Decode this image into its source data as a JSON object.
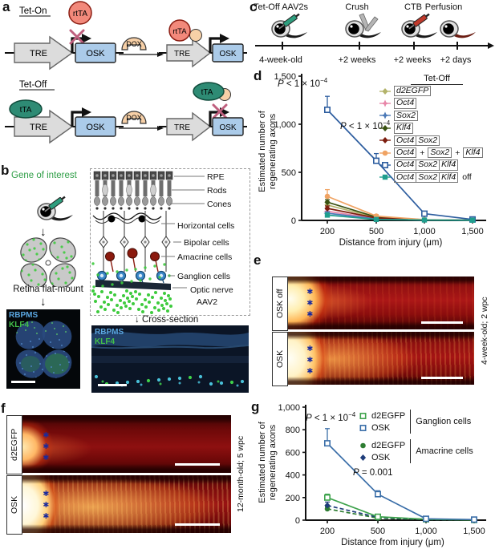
{
  "figure": {
    "crush_marks": "✱✱✱"
  },
  "palette": {
    "fluoro_red": "#a51414",
    "fluoro_bright": "#fff8e0",
    "aav_green": "#3ecb3e",
    "rbpms_blue": "#5aa6e0",
    "klf4_green": "#43c04a",
    "osk_blue": "#2d5d9f",
    "teal": "#1f9e8e",
    "rtta_red": "#f2897b",
    "tta_green": "#2e8b74",
    "dox_peach": "#f7d0a7"
  },
  "panels": {
    "a": {
      "label": "a",
      "tet_on": "Tet-On",
      "tet_off": "Tet-Off",
      "rtta": "rtTA",
      "tta": "tTA",
      "dox": "DOX",
      "tre": "TRE",
      "osk": "OSK"
    },
    "b": {
      "label": "b",
      "gene_of_interest": "Gene of interest",
      "flat_mount": "Retina flat-mount",
      "cross_section": "Cross-section",
      "rbpms": "RBPMS",
      "klf4": "KLF4",
      "layers": [
        "RPE",
        "Rods",
        "Cones",
        "Horizontal cells",
        "Bipolar cells",
        "Amacrine cells",
        "Ganglion cells",
        "Optic nerve",
        "AAV2"
      ]
    },
    "c": {
      "label": "c",
      "steps": [
        {
          "title": "Tet-Off AAV2s",
          "time": "4-week-old"
        },
        {
          "title": "Crush",
          "time": "+2 weeks"
        },
        {
          "title": "CTB",
          "time": "+2 weeks"
        },
        {
          "title": "Perfusion",
          "time": "+2 days"
        }
      ]
    },
    "d": {
      "label": "d"
    },
    "e": {
      "label": "e",
      "rows": [
        "OSK off",
        "OSK"
      ],
      "side": "4-week-old; 2 wpc"
    },
    "f": {
      "label": "f",
      "rows": [
        "d2EGFP",
        "OSK"
      ],
      "side": "12-month-old; 5 wpc"
    },
    "g": {
      "label": "g"
    }
  },
  "chart_data": [
    {
      "type": "line",
      "panel": "d",
      "legend_title": "Tet-Off",
      "grid": false,
      "legend_position": "top-right",
      "xlabel": "Distance from injury (μm)",
      "ylabel_lines": [
        "Estimated number of",
        "regenerating axons"
      ],
      "x": [
        200,
        500,
        1000,
        1500
      ],
      "xtick_labels": [
        "200",
        "500",
        "1,000",
        "1,500"
      ],
      "ylim": [
        0,
        1500
      ],
      "yticks": [
        0,
        500,
        1000,
        1500
      ],
      "ytick_labels": [
        "0",
        "500",
        "1,000",
        "1,500"
      ],
      "annotations": [
        {
          "p": "P",
          "rest": " < 1 × 10",
          "sup": "−4"
        },
        {
          "p": "P",
          "rest": " < 1 × 10",
          "sup": "−4"
        }
      ],
      "series": [
        {
          "name": "d2EGFP",
          "label_parts": [
            [
              "d2EGFP"
            ]
          ],
          "color": "#b3b36a",
          "marker": "diamond",
          "values": [
            160,
            30,
            5,
            2
          ],
          "errors": [
            30,
            8,
            2,
            0
          ]
        },
        {
          "name": "Oct4",
          "label_parts": [
            [
              "Oct4"
            ]
          ],
          "color": "#e887a9",
          "marker": "star",
          "values": [
            95,
            20,
            5,
            2
          ],
          "errors": [
            20,
            5,
            2,
            0
          ]
        },
        {
          "name": "Sox2",
          "label_parts": [
            [
              "Sox2"
            ]
          ],
          "color": "#4b79b7",
          "marker": "star",
          "values": [
            75,
            15,
            4,
            2
          ],
          "errors": [
            15,
            5,
            2,
            0
          ]
        },
        {
          "name": "Klf4",
          "label_parts": [
            [
              "Klf4"
            ]
          ],
          "color": "#3a5212",
          "marker": "diamond",
          "values": [
            190,
            35,
            6,
            2
          ],
          "errors": [
            25,
            8,
            2,
            0
          ]
        },
        {
          "name": "Oct4 Sox2",
          "label_parts": [
            [
              "Oct4",
              "Sox2"
            ]
          ],
          "color": "#7c1d0e",
          "marker": "diamond",
          "values": [
            125,
            25,
            5,
            2
          ],
          "errors": [
            25,
            6,
            2,
            0
          ]
        },
        {
          "name": "Oct4 + Sox2 + Klf4",
          "label_parts": [
            [
              "Oct4"
            ],
            [
              "Sox2"
            ],
            [
              "Klf4"
            ]
          ],
          "joiner": "+",
          "color": "#f0a363",
          "marker": "circle",
          "values": [
            250,
            45,
            8,
            2
          ],
          "errors": [
            70,
            15,
            3,
            0
          ]
        },
        {
          "name": "Oct4 Sox2 Klf4",
          "label_parts": [
            [
              "Oct4",
              "Sox2",
              "Klf4"
            ]
          ],
          "color": "#2d5d9f",
          "marker": "open-square",
          "values": [
            1150,
            620,
            70,
            10
          ],
          "errors": [
            140,
            75,
            15,
            5
          ]
        },
        {
          "name": "Oct4 Sox2 Klf4 off",
          "label_parts": [
            [
              "Oct4",
              "Sox2",
              "Klf4"
            ]
          ],
          "suffix": "off",
          "color": "#1f9e8e",
          "marker": "square",
          "values": [
            55,
            10,
            4,
            2
          ],
          "errors": [
            10,
            3,
            0,
            0
          ]
        }
      ]
    },
    {
      "type": "line",
      "panel": "g",
      "grid": false,
      "xlabel": "Distance from injury (μm)",
      "ylabel_lines": [
        "Estimated number of",
        "regenerating axons"
      ],
      "x": [
        200,
        500,
        1000,
        1500
      ],
      "xtick_labels": [
        "200",
        "500",
        "1,000",
        "1,500"
      ],
      "ylim": [
        0,
        1000
      ],
      "yticks": [
        0,
        200,
        400,
        600,
        800,
        1000
      ],
      "ytick_labels": [
        "0",
        "200",
        "400",
        "600",
        "800",
        "1,000"
      ],
      "annotations": [
        {
          "p": "P",
          "rest": " < 1 × 10",
          "sup": "−4"
        },
        {
          "p": "P",
          "rest": " = 0.001"
        }
      ],
      "legend_groups": [
        {
          "group": "Ganglion cells",
          "entries": [
            {
              "name": "d2EGFP",
              "marker": "open-square",
              "color": "#3fa34d"
            },
            {
              "name": "OSK",
              "marker": "open-square",
              "color": "#3a6ea8"
            }
          ]
        },
        {
          "group": "Amacrine cells",
          "entries": [
            {
              "name": "d2EGFP",
              "marker": "circle",
              "color": "#2e7d32"
            },
            {
              "name": "OSK",
              "marker": "diamond",
              "color": "#1f3d7a"
            }
          ]
        }
      ],
      "series": [
        {
          "name": "d2EGFP (ganglion cells)",
          "color": "#3fa34d",
          "marker": "open-square",
          "dash": false,
          "values": [
            200,
            30,
            8,
            2
          ],
          "errors": [
            30,
            8,
            2,
            0
          ]
        },
        {
          "name": "OSK (ganglion cells)",
          "color": "#3a6ea8",
          "marker": "open-square",
          "dash": false,
          "values": [
            680,
            230,
            12,
            5
          ],
          "errors": [
            130,
            30,
            5,
            2
          ]
        },
        {
          "name": "d2EGFP (amacrine cells)",
          "color": "#2e7d32",
          "marker": "circle",
          "dash": true,
          "values": [
            100,
            18,
            5,
            2
          ],
          "errors": [
            18,
            5,
            2,
            0
          ]
        },
        {
          "name": "OSK (amacrine cells)",
          "color": "#1f3d7a",
          "marker": "diamond",
          "dash": true,
          "values": [
            130,
            25,
            6,
            2
          ],
          "errors": [
            30,
            8,
            2,
            0
          ]
        }
      ]
    }
  ]
}
